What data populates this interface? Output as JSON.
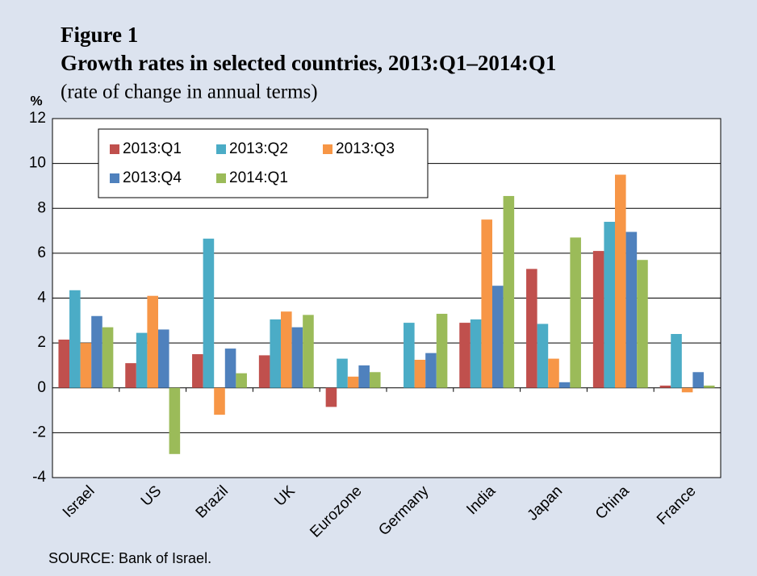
{
  "chart_data": {
    "type": "bar",
    "figure_label": "Figure 1",
    "title": "Growth rates in selected countries, 2013:Q1–2014:Q1",
    "subtitle": "(rate of change in annual terms)",
    "y_unit": "%",
    "source": "SOURCE: Bank of Israel.",
    "categories": [
      "Israel",
      "US",
      "Brazil",
      "UK",
      "Eurozone",
      "Germany",
      "India",
      "Japan",
      "China",
      "France"
    ],
    "series": [
      {
        "name": "2013:Q1",
        "color": "#c0504d",
        "values": [
          2.15,
          1.1,
          1.5,
          1.45,
          -0.85,
          0,
          2.9,
          5.3,
          6.1,
          0.1
        ]
      },
      {
        "name": "2013:Q2",
        "color": "#4bacc6",
        "values": [
          4.35,
          2.45,
          6.65,
          3.05,
          1.3,
          2.9,
          3.05,
          2.85,
          7.4,
          2.4
        ]
      },
      {
        "name": "2013:Q3",
        "color": "#f79646",
        "values": [
          2.0,
          4.1,
          -1.2,
          3.4,
          0.5,
          1.25,
          7.5,
          1.3,
          9.5,
          -0.2
        ]
      },
      {
        "name": "2013:Q4",
        "color": "#4f81bd",
        "values": [
          3.2,
          2.6,
          1.75,
          2.7,
          1.0,
          1.55,
          4.55,
          0.25,
          6.95,
          0.7
        ]
      },
      {
        "name": "2014:Q1",
        "color": "#9bbb59",
        "values": [
          2.7,
          -2.95,
          0.65,
          3.25,
          0.7,
          3.3,
          8.55,
          6.7,
          5.7,
          0.1
        ]
      }
    ],
    "ylim": [
      -4,
      12
    ],
    "yticks": [
      -4,
      -2,
      0,
      2,
      4,
      6,
      8,
      10,
      12
    ],
    "grid": true,
    "legend": "upper left"
  }
}
